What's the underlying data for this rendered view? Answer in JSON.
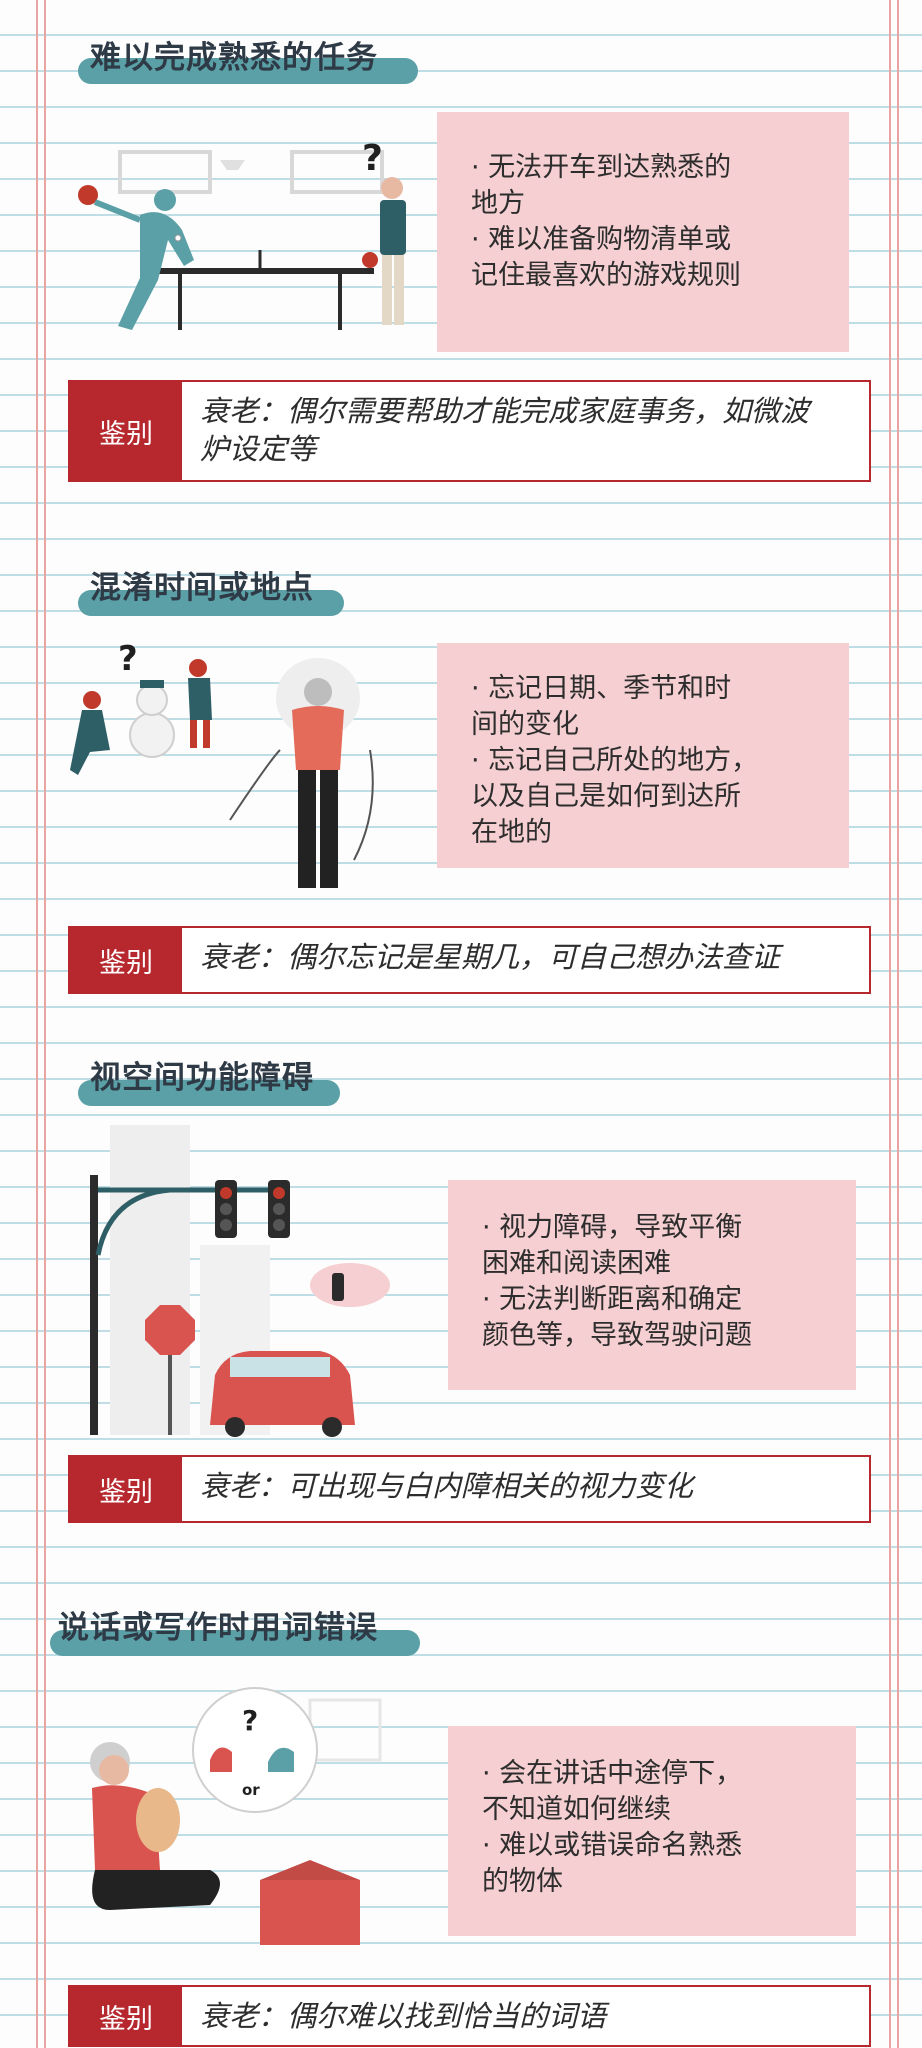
{
  "identify_label": "鉴别",
  "sections": [
    {
      "title": "难以完成熟悉的任务",
      "lines": [
        "· 无法开车到达熟悉的",
        "地方",
        "· 难以准备购物清单或",
        "记住最喜欢的游戏规则"
      ],
      "identify": [
        "衰老：偶尔需要帮助才能完成家庭事务，如微波",
        "炉设定等"
      ]
    },
    {
      "title": "混淆时间或地点",
      "lines": [
        "· 忘记日期、季节和时",
        "间的变化",
        "· 忘记自己所处的地方，",
        "以及自己是如何到达所",
        "在地的"
      ],
      "identify": [
        "衰老：偶尔忘记是星期几，可自己想办法查证"
      ]
    },
    {
      "title": "视空间功能障碍",
      "lines": [
        "· 视力障碍，导致平衡",
        "困难和阅读困难",
        "· 无法判断距离和确定",
        "颜色等，导致驾驶问题"
      ],
      "identify": [
        "衰老：可出现与白内障相关的视力变化"
      ]
    },
    {
      "title": "说话或写作时用词错误",
      "lines": [
        "· 会在讲话中途停下，",
        "不知道如何继续",
        "· 难以或错误命名熟悉",
        "的物体"
      ],
      "identify": [
        "衰老：偶尔难以找到恰当的词语"
      ],
      "bubble_text": "or"
    }
  ],
  "colors": {
    "pill": "#5aa0a6",
    "title": "#2f3a47",
    "info_bg": "#f5cfd1",
    "accent_red": "#b6282e"
  },
  "icons": [
    "table-tennis-illustration",
    "snowman-illustration",
    "traffic-light-illustration",
    "cat-dog-illustration"
  ]
}
